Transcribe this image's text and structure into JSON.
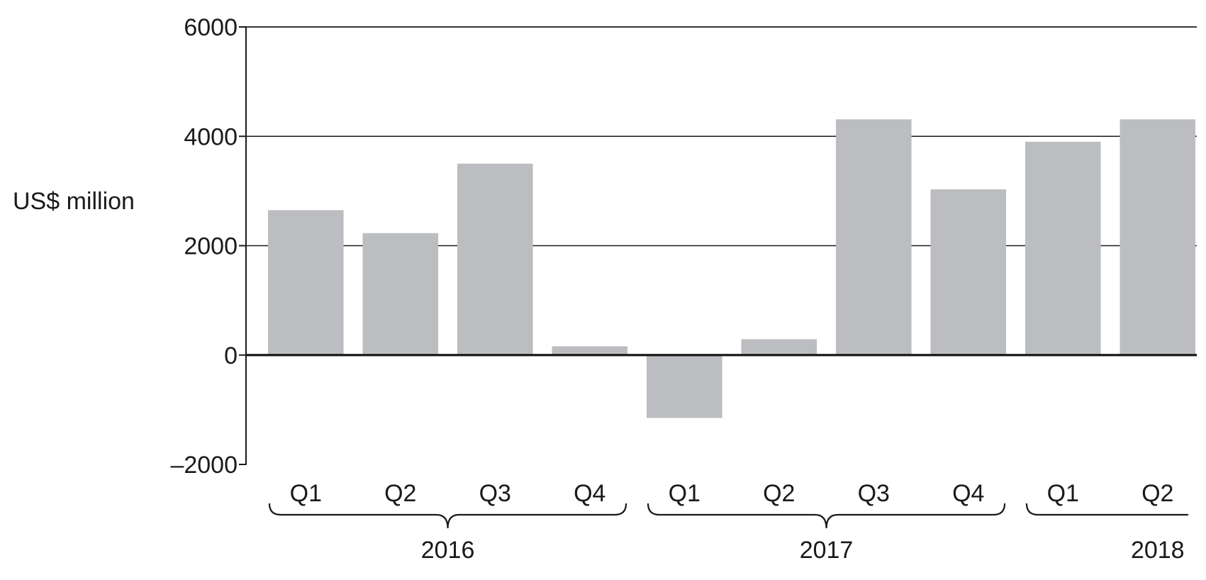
{
  "chart_data": {
    "type": "bar",
    "title": "",
    "xlabel": "",
    "ylabel": "US$ million",
    "ylim": [
      -2000,
      6000
    ],
    "yticks": [
      {
        "value": 6000,
        "label": "6000"
      },
      {
        "value": 4000,
        "label": "4000"
      },
      {
        "value": 2000,
        "label": "2000"
      },
      {
        "value": 0,
        "label": "0"
      },
      {
        "value": -2000,
        "label": "–2000"
      }
    ],
    "grid": true,
    "bar_color": "#bcbdc0",
    "categories": [
      "Q1",
      "Q2",
      "Q3",
      "Q4",
      "Q1",
      "Q2",
      "Q3",
      "Q4",
      "Q1",
      "Q2"
    ],
    "values": [
      2650,
      2230,
      3500,
      160,
      -1150,
      290,
      4310,
      3030,
      3900,
      4310
    ],
    "groups": [
      {
        "label": "2016",
        "start": 0,
        "end": 3
      },
      {
        "label": "2017",
        "start": 4,
        "end": 7
      },
      {
        "label": "2018",
        "start": 8,
        "end": 9
      }
    ]
  }
}
